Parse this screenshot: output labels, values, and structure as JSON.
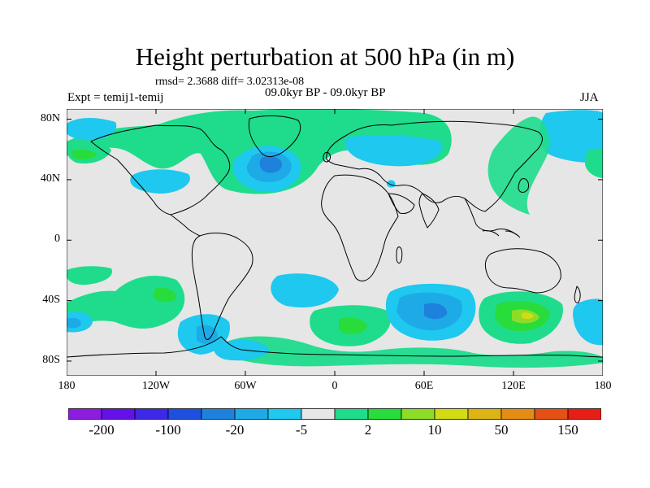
{
  "title": "Height perturbation at 500 hPa (in m)",
  "stats": "rmsd= 2.3688 diff= 3.02313e-08",
  "experiment": "Expt = temij1-temij",
  "period": "09.0kyr BP - 09.0kyr BP",
  "season": "JJA",
  "y_axis": {
    "ticks": [
      {
        "label": "80N",
        "lat": 80
      },
      {
        "label": "40N",
        "lat": 40
      },
      {
        "label": "0",
        "lat": 0
      },
      {
        "label": "40S",
        "lat": -40
      },
      {
        "label": "80S",
        "lat": -80
      }
    ]
  },
  "x_axis": {
    "ticks": [
      {
        "label": "180",
        "lon": -180
      },
      {
        "label": "120W",
        "lon": -120
      },
      {
        "label": "60W",
        "lon": -60
      },
      {
        "label": "0",
        "lon": 0
      },
      {
        "label": "60E",
        "lon": 60
      },
      {
        "label": "120E",
        "lon": 120
      },
      {
        "label": "180",
        "lon": 180
      }
    ]
  },
  "colorbar": {
    "colors": [
      "#8c1ce0",
      "#6410e8",
      "#3c28e6",
      "#1e50e0",
      "#1e82dc",
      "#1eaae6",
      "#1ec8ee",
      "#e6e6e6",
      "#1edc8c",
      "#28dc3c",
      "#8cdc28",
      "#d2dc14",
      "#dcb414",
      "#e68c14",
      "#e65014",
      "#e61e14"
    ],
    "ticks": [
      {
        "label": "-200",
        "after": 0
      },
      {
        "label": "-100",
        "after": 2
      },
      {
        "label": "-20",
        "after": 4
      },
      {
        "label": "-5",
        "after": 6
      },
      {
        "label": "2",
        "after": 8
      },
      {
        "label": "10",
        "after": 10
      },
      {
        "label": "50",
        "after": 12
      },
      {
        "label": "150",
        "after": 14
      }
    ]
  }
}
